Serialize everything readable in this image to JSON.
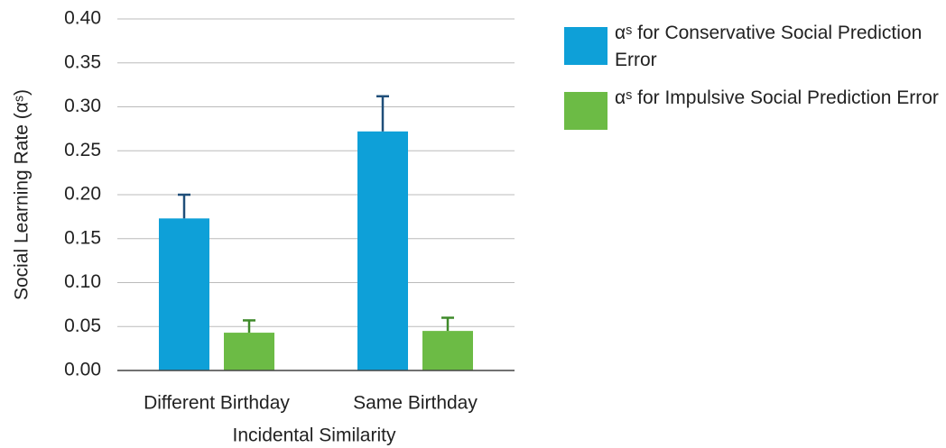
{
  "chart_data": {
    "type": "bar",
    "x_label": "Incidental Similarity",
    "y_label": "Social Learning Rate (αˢ)",
    "categories": [
      "Different Birthday",
      "Same Birthday"
    ],
    "series": [
      {
        "name": "αˢ for Conservative Social Prediction Error",
        "color": "#0ea0d8",
        "error_color": "#1f4e79",
        "values": [
          0.173,
          0.272
        ],
        "errors": [
          0.027,
          0.04
        ]
      },
      {
        "name": "αˢ for Impulsive Social Prediction Error",
        "color": "#6cbb45",
        "error_color": "#3f8a2a",
        "values": [
          0.043,
          0.045
        ],
        "errors": [
          0.014,
          0.015
        ]
      }
    ],
    "ylim": [
      0,
      0.4
    ],
    "yticks": [
      {
        "value": 0,
        "label": "0.00"
      },
      {
        "value": 0.05,
        "label": "0.05"
      },
      {
        "value": 0.1,
        "label": "0.10"
      },
      {
        "value": 0.15,
        "label": "0.15"
      },
      {
        "value": 0.2,
        "label": "0.20"
      },
      {
        "value": 0.25,
        "label": "0.25"
      },
      {
        "value": 0.3,
        "label": "0.30"
      },
      {
        "value": 0.35,
        "label": "0.35"
      },
      {
        "value": 0.4,
        "label": "0.40"
      }
    ],
    "grid": true
  }
}
